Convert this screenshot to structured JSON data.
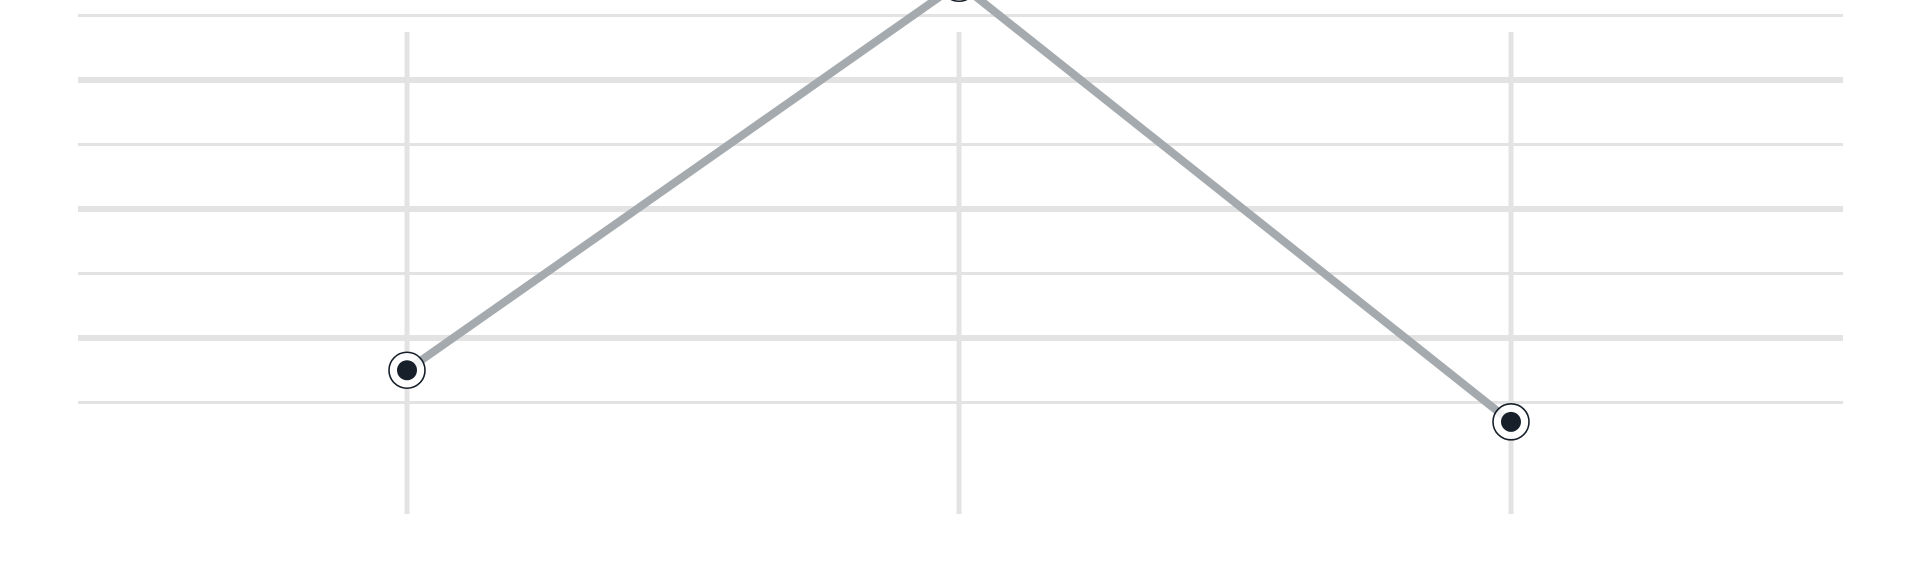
{
  "chart_data": {
    "type": "line",
    "x": [
      1,
      2,
      3
    ],
    "series": [
      {
        "values": [
          1.5,
          7.5,
          0.7
        ]
      }
    ],
    "xlim": [
      0.4,
      3.6
    ],
    "ylim": [
      -0.5,
      8.0
    ],
    "grid_y": [
      1,
      2,
      3,
      4,
      5,
      6,
      7
    ],
    "grid_y_major": [
      2,
      4,
      6
    ],
    "grid_x": [
      1,
      2,
      3
    ],
    "grid": true,
    "colors": {
      "line": "#a4aaae",
      "marker_fill": "#17202a",
      "marker_ring": "#17202a",
      "grid": "#e3e3e3"
    }
  }
}
